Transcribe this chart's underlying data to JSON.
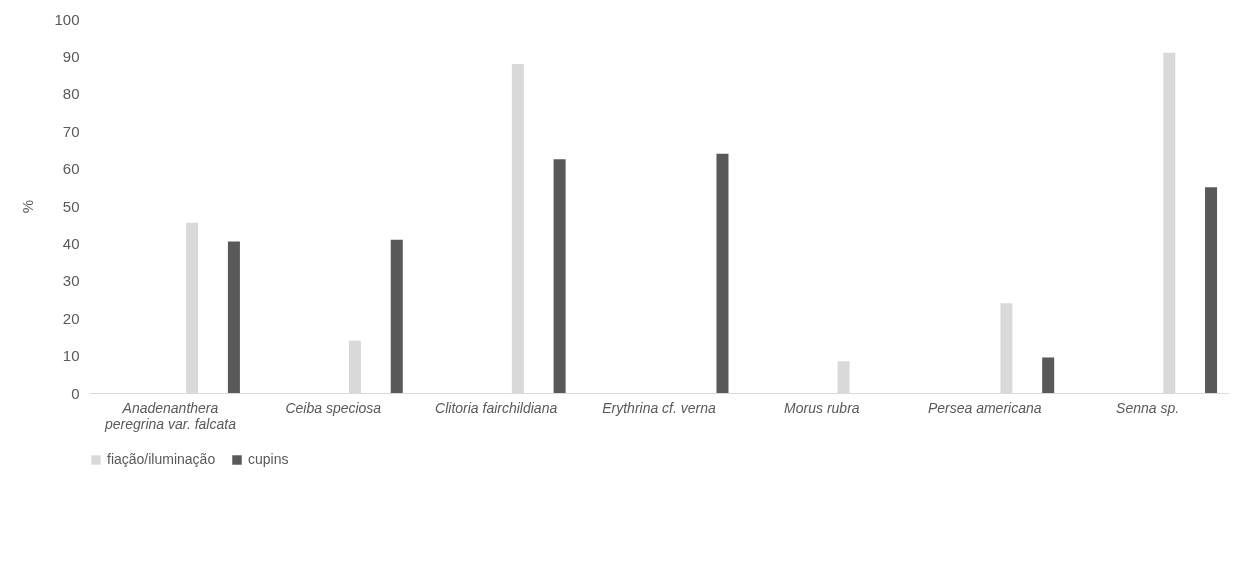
{
  "chart_data": {
    "type": "bar",
    "ylabel": "%",
    "categories": [
      "Anadenanthera peregrina var. falcata",
      "Ceiba speciosa",
      "Clitoria fairchildiana",
      "Erythrina cf. verna",
      "Morus rubra",
      "Persea americana",
      "Senna sp."
    ],
    "series": [
      {
        "name": "fiação/iluminação",
        "color": "#d9d9d9",
        "values": [
          45.5,
          14,
          88,
          null,
          8.5,
          24,
          91
        ]
      },
      {
        "name": "cupins",
        "color": "#595959",
        "values": [
          40.5,
          41,
          62.5,
          64,
          null,
          9.5,
          55
        ]
      }
    ],
    "ylim": [
      0,
      100
    ],
    "yticks": [
      0,
      10,
      20,
      30,
      40,
      50,
      60,
      70,
      80,
      90,
      100
    ],
    "grid": false,
    "legend": "bottom"
  }
}
